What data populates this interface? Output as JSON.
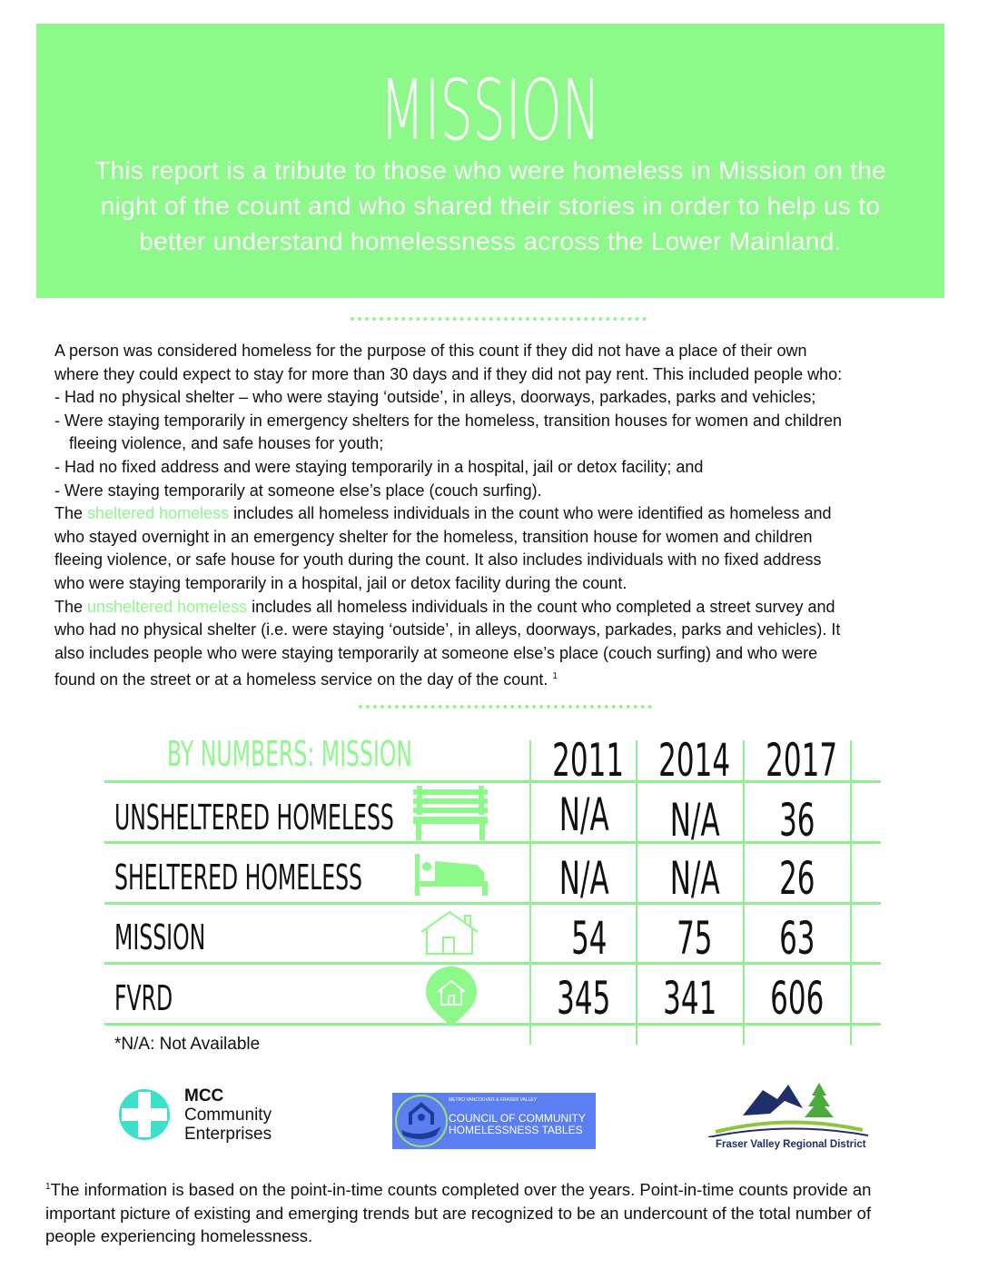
{
  "header": {
    "title": "MISSION",
    "subtitle_lines": [
      "This report is a tribute to those who were homeless in Mission on the",
      "night of the count and who shared their stories in order to help us to",
      "better understand homelessness across the Lower Mainland."
    ]
  },
  "definition": {
    "lines": [
      "A person was considered homeless for the purpose of this count if they did not have a place of their own",
      "where they could expect to stay for more than 30 days and if they did not pay rent. This included people who:",
      "- Had no physical shelter – who were staying ‘outside’, in alleys, doorways, parkades, parks and vehicles;",
      "- Were staying temporarily in emergency shelters for the homeless, transition houses for women and children",
      "fleeing violence, and safe houses for youth;",
      "- Had no fixed address and were staying temporarily in a hospital, jail or detox facility; and",
      "- Were staying temporarily at someone else’s place (couch surfing)."
    ],
    "sheltered": {
      "pre": "The ",
      "term": "sheltered homeless",
      "post": " includes all homeless individuals in the count who were identified as homeless and",
      "lines": [
        "who stayed overnight in an emergency shelter for the homeless, transition house for women and children",
        "fleeing violence, or safe house for youth during the count. It also includes individuals with no fixed address",
        "who were staying temporarily in a hospital, jail or detox facility during the count."
      ]
    },
    "unsheltered": {
      "pre": "The ",
      "term": "unsheltered homeless",
      "post": " includes all homeless individuals in the count who completed a street survey and",
      "lines": [
        "who had no physical shelter (i.e. were staying ‘outside’, in alleys, doorways, parkades, parks and vehicles). It",
        "also includes people who were staying temporarily at someone else’s place (couch surfing) and who were",
        "found on the street or at a homeless service on the day of the count."
      ],
      "footnote_mark": "1"
    }
  },
  "table": {
    "title": "BY NUMBERS: MISSION",
    "years": [
      "2011",
      "2014",
      "2017"
    ],
    "rows": [
      {
        "label": "UNSHELTERED HOMELESS",
        "icon": "bench-icon",
        "values": [
          "N/A",
          "N/A",
          "36"
        ]
      },
      {
        "label": "SHELTERED HOMELESS",
        "icon": "bed-icon",
        "values": [
          "N/A",
          "N/A",
          "26"
        ]
      },
      {
        "label": "MISSION",
        "icon": "house-icon",
        "values": [
          "54",
          "75",
          "63"
        ]
      },
      {
        "label": "FVRD",
        "icon": "house-pin-icon",
        "values": [
          "345",
          "341",
          "606"
        ]
      }
    ],
    "note": "*N/A: Not Available"
  },
  "logos": {
    "mcc": {
      "line1": "MCC",
      "line2": "Community",
      "line3": "Enterprises"
    },
    "council": {
      "small": "METRO VANCOUVER & FRASER VALLEY",
      "line1": "COUNCIL OF COMMUNITY",
      "line2": "HOMELESSNESS TABLES"
    },
    "fvrd": {
      "name": "Fraser Valley Regional District"
    }
  },
  "footnote": {
    "mark": "1",
    "lines": [
      "The information is based on the point-in-time counts completed over the years.  Point-in-time counts provide an",
      "important picture of existing and emerging trends but are recognized to be an undercount of the total number of",
      "people experiencing homelessness."
    ]
  },
  "colors": {
    "accent": "#8cf98a",
    "table_lines": "#8ef08f",
    "council_bg": "#5b7ff0",
    "mcc_teal": "#3fe0c8"
  }
}
